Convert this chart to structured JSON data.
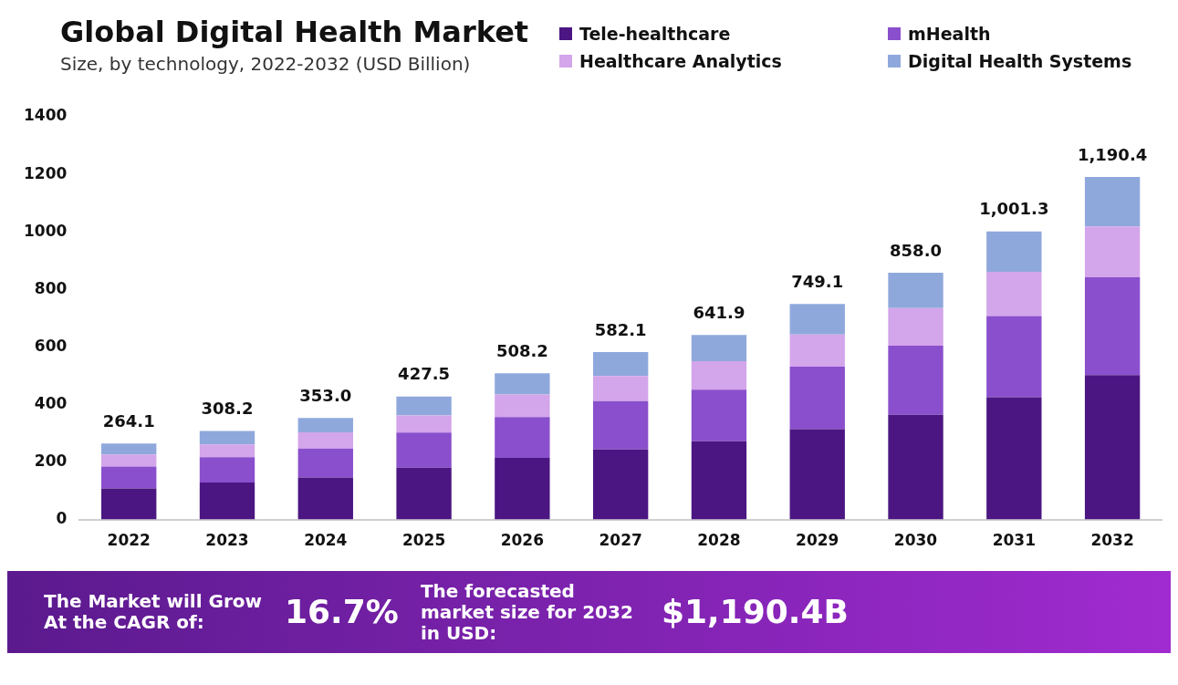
{
  "chart_data": {
    "type": "bar",
    "title": "Global Digital Health Market",
    "subtitle": "Size, by technology, 2022-2032 (USD Billion)",
    "categories": [
      "2022",
      "2023",
      "2024",
      "2025",
      "2026",
      "2027",
      "2028",
      "2029",
      "2030",
      "2031",
      "2032"
    ],
    "series": [
      {
        "name": "Tele-healthcare",
        "color": "#4b1682",
        "values": [
          108,
          129,
          146,
          180,
          214,
          244,
          272,
          314,
          364,
          425,
          502
        ]
      },
      {
        "name": "mHealth",
        "color": "#8a4fcc",
        "values": [
          76,
          88,
          101,
          122,
          142,
          168,
          179,
          217,
          240,
          282,
          340
        ]
      },
      {
        "name": "Healthcare Analytics",
        "color": "#d3a5ea",
        "values": [
          42,
          44,
          56,
          60,
          79,
          87,
          99,
          112,
          131,
          154,
          177
        ]
      },
      {
        "name": "Digital Health Systems",
        "color": "#8fa8dc",
        "values": [
          38.1,
          47.2,
          50,
          65.5,
          73.2,
          83.1,
          91.9,
          106.1,
          123,
          140.3,
          171.4
        ]
      }
    ],
    "stacked": true,
    "totals": [
      "264.1",
      "308.2",
      "353.0",
      "427.5",
      "508.2",
      "582.1",
      "641.9",
      "749.1",
      "858.0",
      "1,001.3",
      "1,190.4"
    ],
    "ylim": [
      0,
      1400
    ],
    "yticks": [
      0,
      200,
      400,
      600,
      800,
      1000,
      1200,
      1400
    ],
    "grid": false,
    "legend": "top right",
    "annotations": [
      "The Market will Grow At the CAGR of:",
      "16.7%",
      "The forecasted market size for 2032 in USD:",
      "$1,190.4B"
    ]
  }
}
